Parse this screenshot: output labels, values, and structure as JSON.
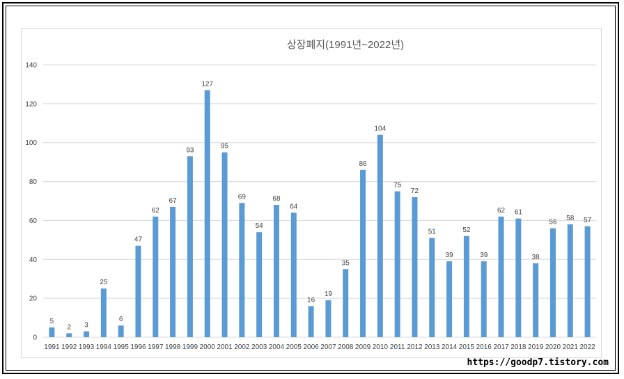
{
  "chart_data": {
    "type": "bar",
    "title": "상장폐지(1991년~2022년)",
    "categories": [
      "1991",
      "1992",
      "1993",
      "1994",
      "1995",
      "1996",
      "1997",
      "1998",
      "1999",
      "2000",
      "2001",
      "2002",
      "2003",
      "2004",
      "2005",
      "2006",
      "2007",
      "2008",
      "2009",
      "2010",
      "2011",
      "2012",
      "2013",
      "2014",
      "2015",
      "2016",
      "2017",
      "2018",
      "2019",
      "2020",
      "2021",
      "2022"
    ],
    "values": [
      5,
      2,
      3,
      25,
      6,
      47,
      62,
      67,
      93,
      127,
      95,
      69,
      54,
      68,
      64,
      16,
      19,
      35,
      86,
      104,
      75,
      72,
      51,
      39,
      52,
      39,
      62,
      61,
      38,
      56,
      58,
      57
    ],
    "ylim": [
      0,
      140
    ],
    "yticks": [
      0,
      20,
      40,
      60,
      80,
      100,
      120,
      140
    ],
    "grid": true,
    "data_labels": true,
    "bar_color": "#5b9bd5",
    "grid_color": "#d9d9d9",
    "text_color": "#404040"
  },
  "watermark": "https://goodp7.tistory.com"
}
